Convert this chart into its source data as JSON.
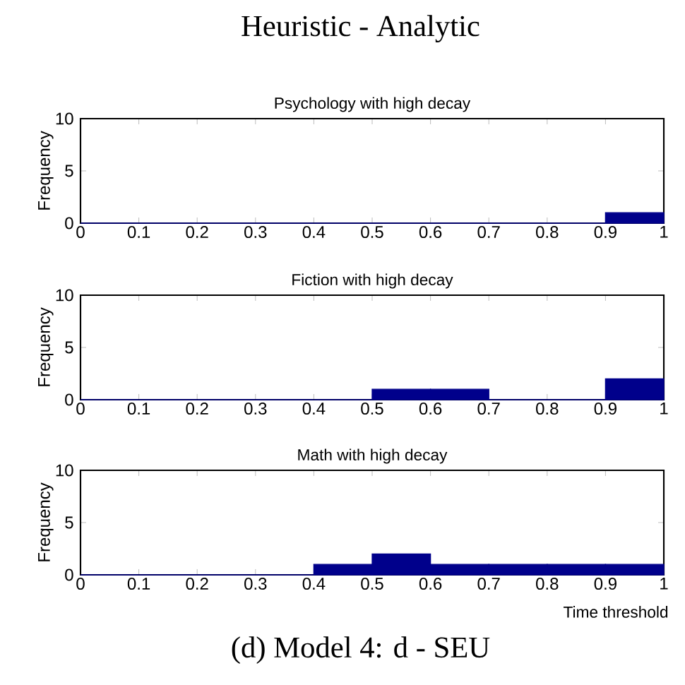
{
  "chart_data": [
    {
      "type": "histogram",
      "title": "Psychology with high decay",
      "ylabel": "Frequency",
      "annotations": [
        "Heuristic - Analytic"
      ],
      "color": "#00008b",
      "bins": [
        0,
        0.1,
        0.2,
        0.3,
        0.4,
        0.5,
        0.6,
        0.7,
        0.8,
        0.9,
        1
      ],
      "values": [
        0,
        0,
        0,
        0,
        0,
        0,
        0,
        0,
        0,
        1
      ],
      "xlim": [
        0,
        1
      ],
      "xticks": [
        0,
        0.1,
        0.2,
        0.3,
        0.4,
        0.5,
        0.6,
        0.7,
        0.8,
        0.9,
        1
      ],
      "ylim": [
        0,
        10
      ],
      "yticks": [
        0,
        5,
        10
      ]
    },
    {
      "type": "histogram",
      "title": "Fiction with high decay",
      "ylabel": "Frequency",
      "color": "#00008b",
      "bins": [
        0,
        0.1,
        0.2,
        0.3,
        0.4,
        0.5,
        0.6,
        0.7,
        0.8,
        0.9,
        1
      ],
      "values": [
        0,
        0,
        0,
        0,
        0,
        1,
        1,
        0,
        0,
        2
      ],
      "xlim": [
        0,
        1
      ],
      "xticks": [
        0,
        0.1,
        0.2,
        0.3,
        0.4,
        0.5,
        0.6,
        0.7,
        0.8,
        0.9,
        1
      ],
      "ylim": [
        0,
        10
      ],
      "yticks": [
        0,
        5,
        10
      ]
    },
    {
      "type": "histogram",
      "title": "Math with high decay",
      "xlabel": "Time threshold",
      "ylabel": "Frequency",
      "annotations": [
        "(d) Model 4: d - SEU"
      ],
      "color": "#00008b",
      "bins": [
        0,
        0.1,
        0.2,
        0.3,
        0.4,
        0.5,
        0.6,
        0.7,
        0.8,
        0.9,
        1
      ],
      "values": [
        0,
        0,
        0,
        0,
        1,
        2,
        1,
        1,
        1,
        1
      ],
      "xlim": [
        0,
        1
      ],
      "xticks": [
        0,
        0.1,
        0.2,
        0.3,
        0.4,
        0.5,
        0.6,
        0.7,
        0.8,
        0.9,
        1
      ],
      "ylim": [
        0,
        10
      ],
      "yticks": [
        0,
        5,
        10
      ]
    }
  ]
}
